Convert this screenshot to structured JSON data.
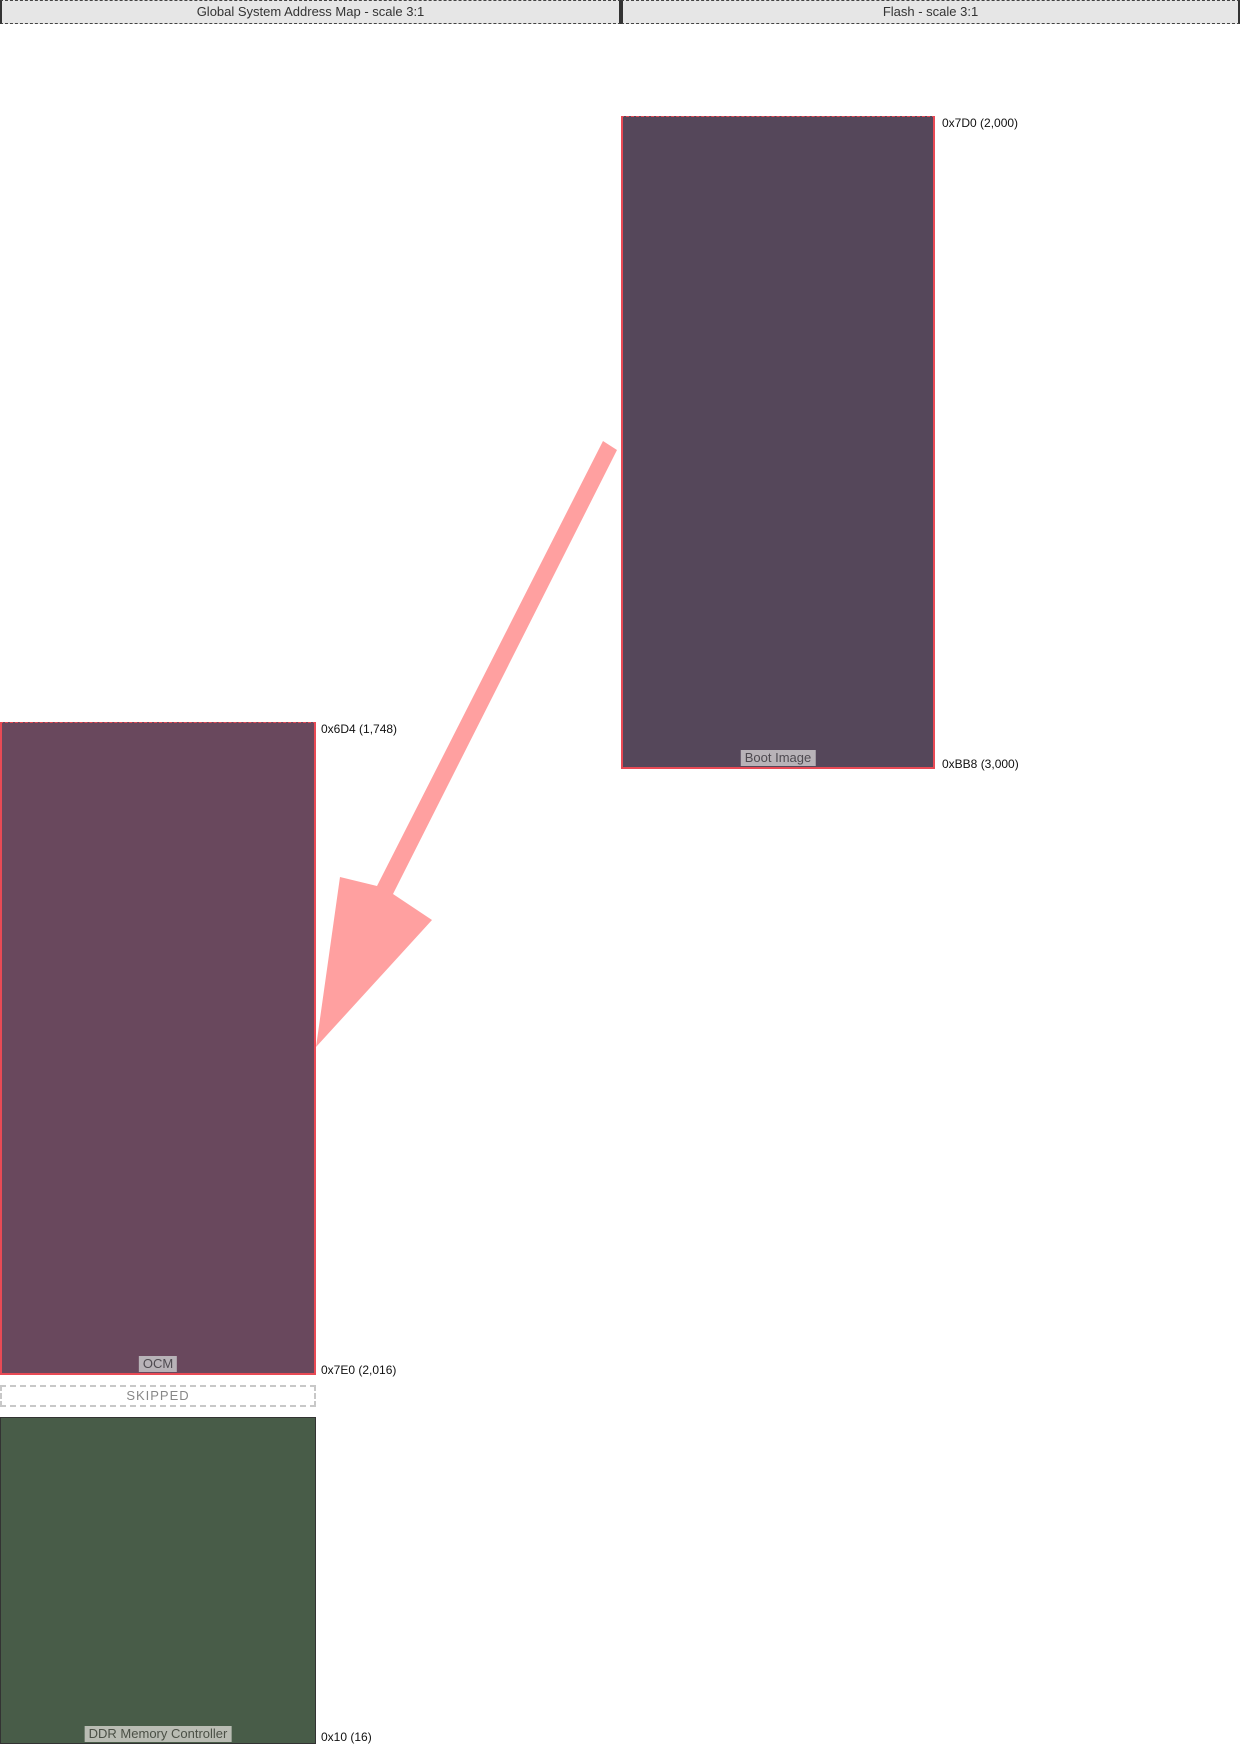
{
  "headers": {
    "global": "Global System Address Map - scale 3:1",
    "flash": "Flash - scale 3:1"
  },
  "regions": {
    "boot_image": {
      "label": "Boot Image",
      "start": "0x7D0 (2,000)",
      "end": "0xBB8 (3,000)",
      "color": "#55475a",
      "border": "#e84a55"
    },
    "ocm": {
      "label": "OCM",
      "start": "0x6D4 (1,748)",
      "end": "0x7E0 (2,016)",
      "color": "#69485d",
      "border": "#e84a55"
    },
    "ddr": {
      "label": "DDR Memory Controller",
      "end": "0x10 (16)",
      "color": "#485c48"
    }
  },
  "skipped": "SKIPPED",
  "arrow": {
    "color": "#ffa0a0",
    "from": "boot_image",
    "to": "ocm"
  }
}
